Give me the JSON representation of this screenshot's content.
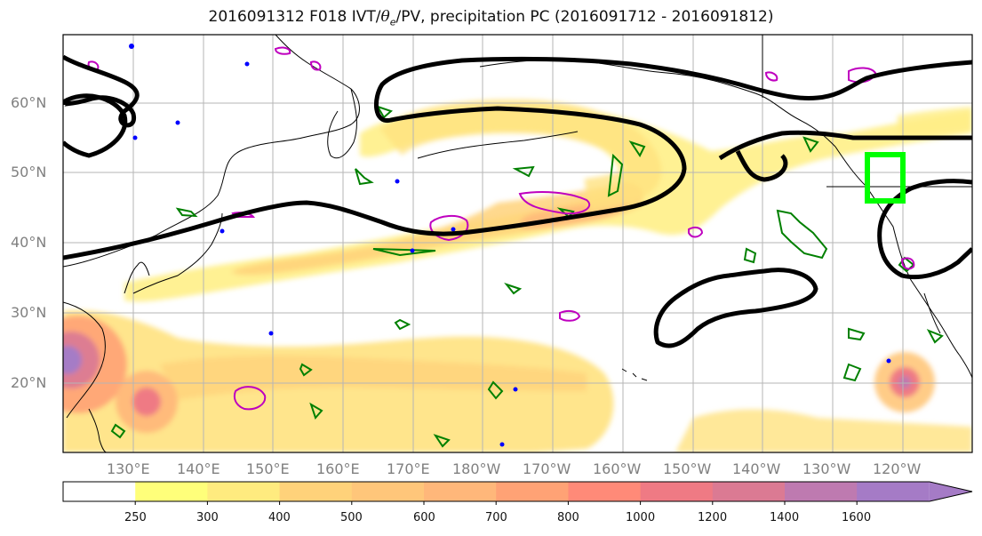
{
  "title": {
    "prefix": "2016091312 F018 IVT/",
    "theta": "θ",
    "theta_sub": "e",
    "suffix": "/PV, precipitation PC (2016091712 - 2016091812)"
  },
  "axes": {
    "lat_labels": [
      "60°N",
      "50°N",
      "40°N",
      "30°N",
      "20°N"
    ],
    "lon_labels": [
      "130°E",
      "140°E",
      "150°E",
      "160°E",
      "170°E",
      "180°W",
      "170°W",
      "160°W",
      "150°W",
      "140°W",
      "130°W",
      "120°W"
    ]
  },
  "colorbar": {
    "ticks": [
      "250",
      "300",
      "400",
      "500",
      "600",
      "700",
      "800",
      "1000",
      "1200",
      "1400",
      "1600"
    ],
    "colors": [
      "#ffffff",
      "#ffff7a",
      "#ffeb7f",
      "#ffd27a",
      "#ffc67a",
      "#ffb77a",
      "#ffa275",
      "#ff8a78",
      "#ef7a84",
      "#db7a93",
      "#be7ab0",
      "#a57bc6"
    ]
  },
  "legend_colors": {
    "ivt_contour": "#000000",
    "theta_e": "#008000",
    "pv": "#bf00bf",
    "negative_pv": "#0000ff",
    "target_box": "#00ff00"
  }
}
